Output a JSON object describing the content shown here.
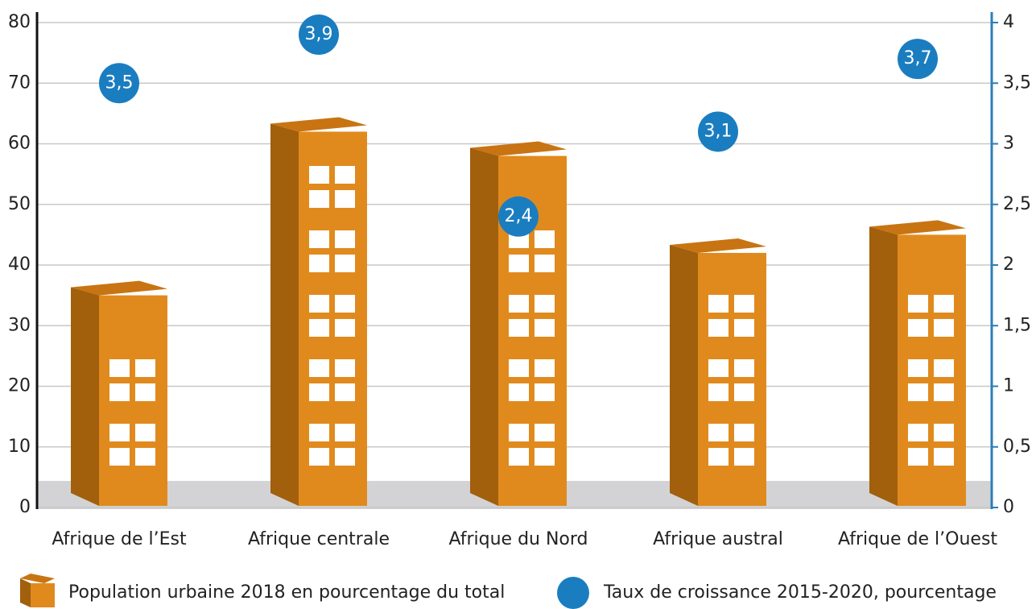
{
  "chart_data": {
    "type": "bar",
    "categories": [
      "Afrique de l’Est",
      "Afrique centrale",
      "Afrique du Nord",
      "Afrique austral",
      "Afrique de l’Ouest"
    ],
    "series": [
      {
        "name": "Population urbaine 2018 en pourcentage du total",
        "color": "#e08a1e",
        "values": [
          35,
          62,
          58,
          42,
          45
        ]
      },
      {
        "name": "Taux de croissance 2015-2020, pourcentage",
        "color": "#1a7dc0",
        "axis": "y2",
        "type": "scatter",
        "values": [
          3.5,
          3.9,
          2.4,
          3.1,
          3.7
        ],
        "value_labels": [
          "3,5",
          "3,9",
          "2,4",
          "3,1",
          "3,7"
        ]
      }
    ],
    "ylim": [
      0,
      80
    ],
    "yticks": [
      0,
      10,
      20,
      30,
      40,
      50,
      60,
      70,
      80
    ],
    "y2lim": [
      0,
      4
    ],
    "y2ticks": [
      0,
      {
        "value": 0.5,
        "label": "0,5"
      },
      1,
      {
        "value": 1.5,
        "label": "1,5"
      },
      2,
      {
        "value": 2.5,
        "label": "2,5"
      },
      3,
      {
        "value": 3.5,
        "label": "3,5"
      },
      4
    ],
    "grid": true
  }
}
